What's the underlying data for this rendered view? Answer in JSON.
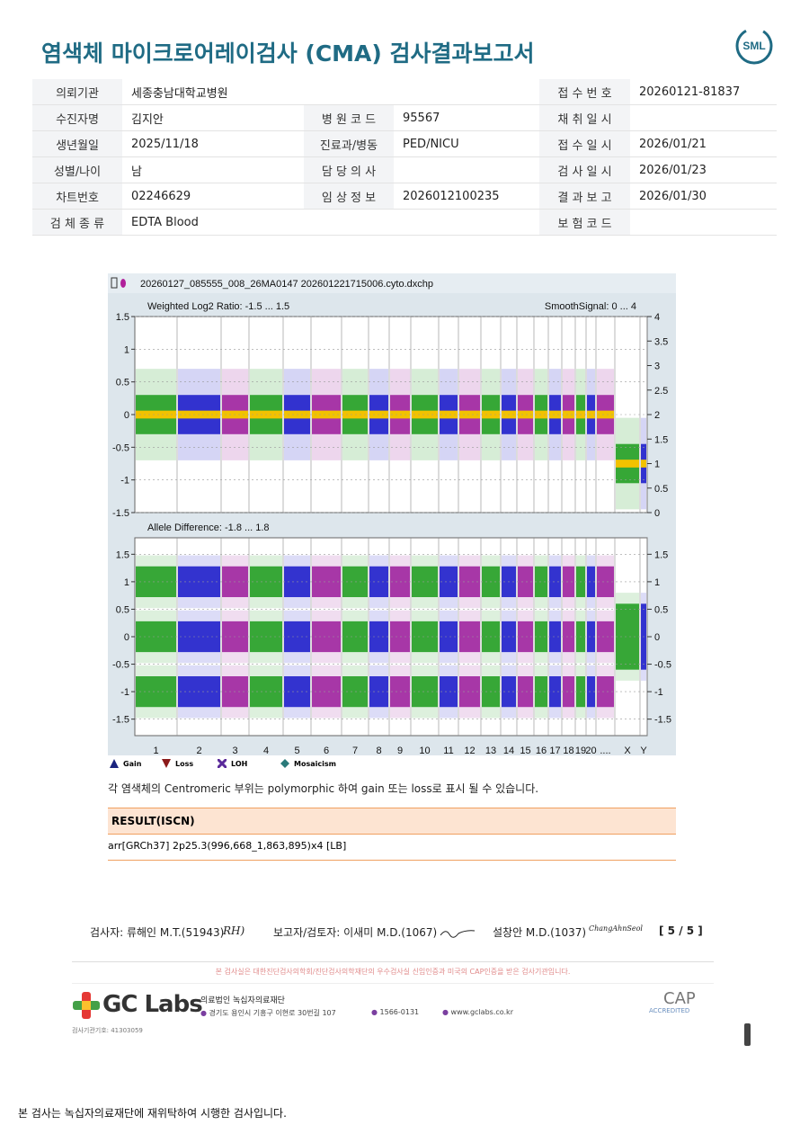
{
  "header": {
    "title": "염색체 마이크로어레이검사 (CMA) 검사결과보고서",
    "logo": "SML"
  },
  "info_table": {
    "rows": [
      {
        "cells": [
          {
            "label": "의뢰기관",
            "value": "세종충남대학교병원"
          },
          {
            "label": "접 수 번 호",
            "value": "20260121-81837"
          }
        ]
      },
      {
        "cells": [
          {
            "label": "수진자명",
            "value": "김지안"
          },
          {
            "label": "병 원 코 드",
            "value": "95567"
          },
          {
            "label": "채 취 일 시"
          }
        ]
      },
      {
        "cells": [
          {
            "label": "생년월일",
            "value": "2025/11/18"
          },
          {
            "label": "진료과/병동",
            "value": "PED/NICU"
          },
          {
            "label": "접 수 일 시",
            "value": "2026/01/21"
          }
        ]
      },
      {
        "cells": [
          {
            "label": "성별/나이",
            "value": "남"
          },
          {
            "label": "담 당 의 사"
          },
          {
            "label": "검 사 일 시",
            "value": "2026/01/23"
          }
        ]
      },
      {
        "cells": [
          {
            "label": "차트번호",
            "value": "02246629"
          },
          {
            "label": "임 상 정 보",
            "value": "2026012100235"
          },
          {
            "label": "결 과 보 고",
            "value": "2026/01/30"
          }
        ]
      },
      {
        "cells": [
          {
            "label": "검 체 종 류",
            "value": "EDTA Blood"
          },
          {
            "label": "보 험 코 드"
          }
        ]
      }
    ]
  },
  "chart_data": {
    "type": "scatter",
    "file_name": "20260127_085555_008_26MA0147 202601221715006.cyto.dxchp",
    "categories": [
      "1",
      "2",
      "3",
      "4",
      "5",
      "6",
      "7",
      "8",
      "9",
      "10",
      "11",
      "12",
      "13",
      "14",
      "15",
      "16",
      "17",
      "18",
      "19",
      "20",
      "....",
      "X",
      "Y"
    ],
    "panels": [
      {
        "title": "Weighted Log2 Ratio: -1.5 ... 1.5",
        "y2_title": "SmoothSignal: 0 ... 4",
        "ylim": [
          -1.5,
          1.5
        ],
        "yticks": [
          -1.5,
          -1,
          -0.5,
          0,
          0.5,
          1,
          1.5
        ],
        "y2lim": [
          0,
          4
        ],
        "y2ticks": [
          0,
          0.5,
          1,
          1.5,
          2,
          2.5,
          3,
          3.5,
          4
        ]
      },
      {
        "title": "Allele Difference: -1.8 ... 1.8",
        "ylim": [
          -1.8,
          1.8
        ],
        "yticks": [
          -1.5,
          -1,
          -0.5,
          0,
          0.5,
          1,
          1.5
        ],
        "y2lim": [
          -1.8,
          1.8
        ],
        "y2ticks": [
          -1.5,
          -1,
          -0.5,
          0,
          0.5,
          1,
          1.5
        ]
      }
    ],
    "legend": [
      "Gain",
      "Loss",
      "LOH",
      "Mosaicism"
    ]
  },
  "note": "각 염색체의 Centromeric 부위는 polymorphic 하여 gain 또는 loss로 표시 될 수 있습니다.",
  "result": {
    "heading": "RESULT(ISCN)",
    "text": "arr[GRCh37] 2p25.3(996,668_1,863,895)x4 [LB]"
  },
  "signatures": {
    "tester": "검사자: 류해인 M.T.(51943)",
    "tester_sign": "RH)",
    "reviewer": "보고자/검토자: 이새미 M.D.(1067)",
    "doctor": "설창안 M.D.(1037)",
    "doctor_sign": "ChangAhnSeol",
    "page": "[ 5 / 5 ]"
  },
  "footer": {
    "notice": "본 검사실은 대한진단검사의학회/진단검사의학재단의 우수검사실 신임인증과 미국의 CAP인증을 받은 검사기관입니다.",
    "brand": "GC Labs",
    "org": "의료법인 녹십자의료재단",
    "address": "경기도 용인시 기흥구 이현로 30번길 107",
    "phone": "1566-0131",
    "web": "www.gclabs.co.kr",
    "code": "검사기관기호: 41303059",
    "cap": "CAP",
    "cap_sub": "ACCREDITED"
  },
  "bottom_note": "본 검사는 녹십자의료재단에 재위탁하여 시행한 검사입니다."
}
